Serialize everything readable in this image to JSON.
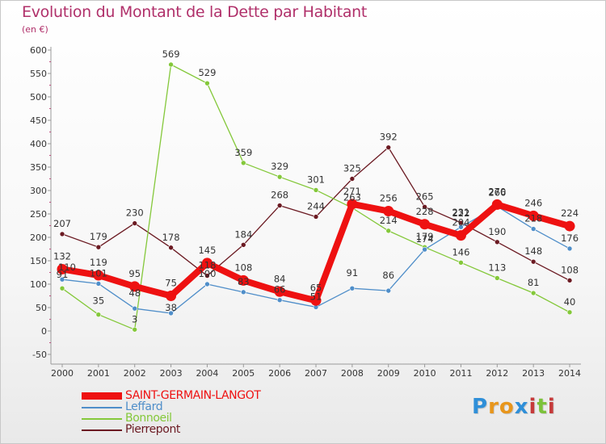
{
  "header": {
    "title": "Evolution du Montant de la Dette par Habitant",
    "subtitle": "(en €)"
  },
  "chart_data": {
    "type": "line",
    "title": "Evolution du Montant de la Dette par Habitant",
    "subtitle": "(en €)",
    "xlabel": "",
    "ylabel": "",
    "ylim": [
      -50,
      600
    ],
    "yticks": [
      -50,
      0,
      50,
      100,
      150,
      200,
      250,
      300,
      350,
      400,
      450,
      500,
      550,
      600
    ],
    "grid": false,
    "legend_position": "bottom-left",
    "categories": [
      "2000",
      "2001",
      "2002",
      "2003",
      "2004",
      "2005",
      "2006",
      "2007",
      "2008",
      "2009",
      "2010",
      "2011",
      "2012",
      "2013",
      "2014"
    ],
    "series": [
      {
        "name": "Pierrepont",
        "color": "#6b1a22",
        "values": [
          207,
          179,
          230,
          178,
          118,
          184,
          268,
          244,
          325,
          392,
          265,
          231,
          190,
          148,
          108
        ]
      },
      {
        "name": "Bonnoeil",
        "color": "#84c83a",
        "values": [
          91,
          35,
          3,
          569,
          529,
          359,
          329,
          301,
          263,
          214,
          179,
          146,
          113,
          81,
          40
        ]
      },
      {
        "name": "Leffard",
        "color": "#4f8ec9",
        "values": [
          110,
          101,
          48,
          38,
          100,
          83,
          66,
          51,
          91,
          86,
          174,
          222,
          266,
          218,
          176
        ]
      },
      {
        "name": "SAINT-GERMAIN-LANGOT",
        "color": "#ee1111",
        "values": [
          132,
          119,
          95,
          75,
          145,
          108,
          84,
          65,
          271,
          256,
          228,
          204,
          270,
          246,
          224
        ]
      }
    ]
  },
  "legend": {
    "items": [
      {
        "label": "SAINT-GERMAIN-LANGOT",
        "color": "#ee1111"
      },
      {
        "label": "Leffard",
        "color": "#4f8ec9"
      },
      {
        "label": "Bonnoeil",
        "color": "#84c83a"
      },
      {
        "label": "Pierrepont",
        "color": "#6b1a22"
      }
    ]
  },
  "logo": {
    "letters": [
      "P",
      "r",
      "o",
      "x",
      "i",
      "t",
      "i"
    ],
    "colors": [
      "#2f8fd8",
      "#e8961c",
      "#e8961c",
      "#2f8fd8",
      "#c63a3a",
      "#7cc23a",
      "#c63a3a"
    ]
  }
}
